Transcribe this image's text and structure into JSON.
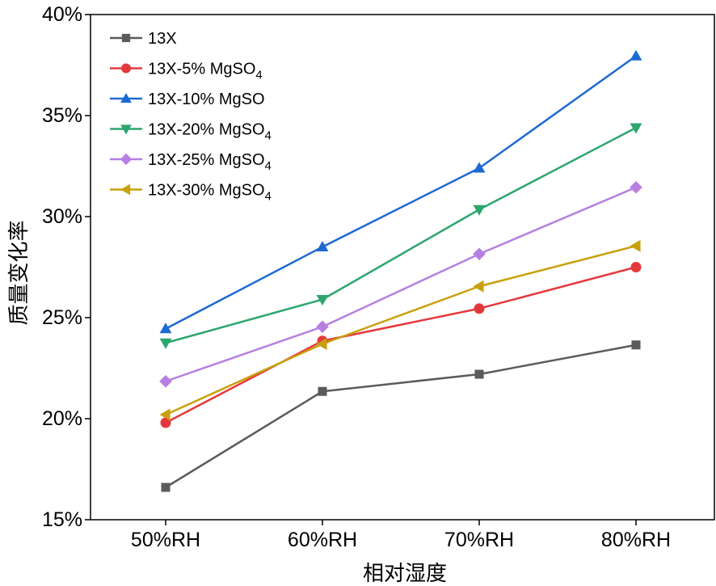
{
  "chart_data": {
    "type": "line",
    "title": "",
    "xlabel": "相对湿度",
    "ylabel": "质量变化率",
    "categories": [
      "50%RH",
      "60%RH",
      "70%RH",
      "80%RH"
    ],
    "ylim": [
      15,
      40
    ],
    "yticks": [
      15,
      20,
      25,
      30,
      35,
      40
    ],
    "ytick_labels": [
      "15%",
      "20%",
      "25%",
      "30%",
      "35%",
      "40%"
    ],
    "grid": false,
    "legend_position": "top-left",
    "series": [
      {
        "name": "13X",
        "base": "13X",
        "sub": "",
        "color": "#5b5b5b",
        "marker": "square",
        "values": [
          16.6,
          21.35,
          22.2,
          23.65
        ]
      },
      {
        "name": "13X-5% MgSO4",
        "base": "13X-5% MgSO",
        "sub": "4",
        "color": "#e4393c",
        "marker": "circle",
        "values": [
          19.8,
          23.85,
          25.45,
          27.5
        ]
      },
      {
        "name": "13X-10% MgSO",
        "base": "13X-10% MgSO",
        "sub": "",
        "color": "#1d6ad3",
        "marker": "triangle-up",
        "values": [
          24.45,
          28.5,
          32.4,
          37.95
        ]
      },
      {
        "name": "13X-20% MgSO4",
        "base": "13X-20% MgSO",
        "sub": "4",
        "color": "#2da66e",
        "marker": "triangle-down",
        "values": [
          23.75,
          25.9,
          30.35,
          34.4
        ]
      },
      {
        "name": "13X-25% MgSO4",
        "base": "13X-25% MgSO",
        "sub": "4",
        "color": "#b67fe0",
        "marker": "diamond",
        "values": [
          21.85,
          24.55,
          28.15,
          31.45
        ]
      },
      {
        "name": "13X-30% MgSO4",
        "base": "13X-30% MgSO",
        "sub": "4",
        "color": "#c9a00c",
        "marker": "triangle-left",
        "values": [
          20.2,
          23.7,
          26.55,
          28.55
        ]
      }
    ]
  }
}
